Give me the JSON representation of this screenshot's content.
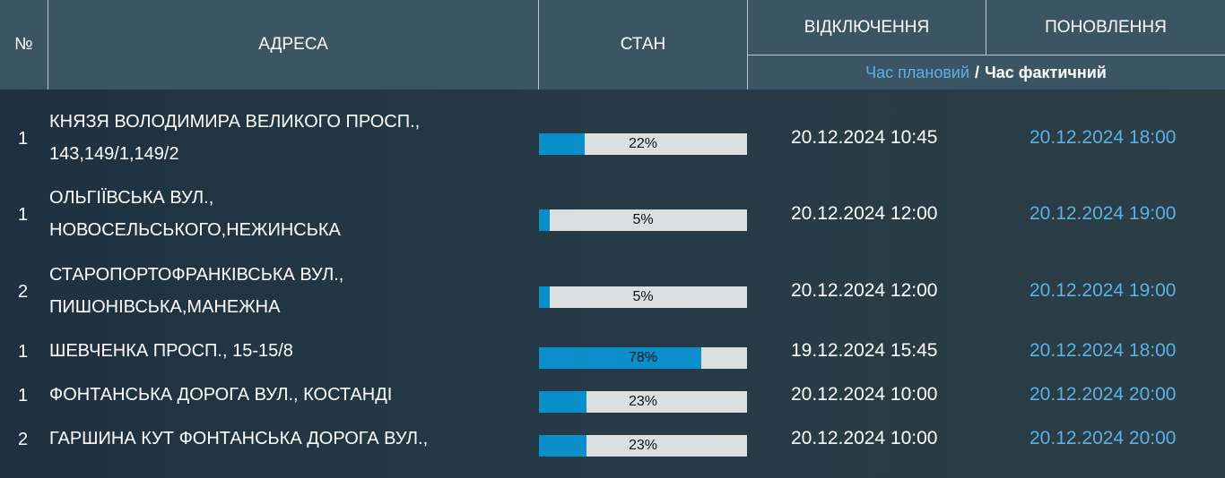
{
  "header": {
    "num": "№",
    "address": "АДРЕСА",
    "status": "СТАН",
    "outage": "ВІДКЛЮЧЕННЯ",
    "restore": "ПОНОВЛЕННЯ",
    "planned": "Час плановий",
    "separator": "/",
    "actual": "Час фактичний"
  },
  "colors": {
    "header_bg": "#3c5565",
    "accent_blue": "#5bb1e3",
    "bar_fill": "#0b8fcb",
    "bar_track": "#dcdfe0"
  },
  "rows": [
    {
      "num": "1",
      "address_line1": "КНЯЗЯ ВОЛОДИМИРА ВЕЛИКОГО ПРОСП.,",
      "address_line2": "143,149/1,149/2",
      "progress_label": "22%",
      "progress": 22,
      "outage": "20.12.2024 10:45",
      "restore": "20.12.2024 18:00"
    },
    {
      "num": "1",
      "address_line1": "ОЛЬГІЇВСЬКА ВУЛ.,",
      "address_line2": "НОВОСЕЛЬСЬКОГО,НЕЖИНСЬКА",
      "progress_label": "5%",
      "progress": 5,
      "outage": "20.12.2024 12:00",
      "restore": "20.12.2024 19:00"
    },
    {
      "num": "2",
      "address_line1": "СТАРОПОРТОФРАНКІВСЬКА ВУЛ.,",
      "address_line2": "ПИШОНІВСЬКА,МАНЕЖНА",
      "progress_label": "5%",
      "progress": 5,
      "outage": "20.12.2024 12:00",
      "restore": "20.12.2024 19:00"
    },
    {
      "num": "1",
      "address_line1": "ШЕВЧЕНКА ПРОСП., 15-15/8",
      "address_line2": "",
      "progress_label": "78%",
      "progress": 78,
      "outage": "19.12.2024 15:45",
      "restore": "20.12.2024 18:00"
    },
    {
      "num": "1",
      "address_line1": "ФОНТАНСЬКА ДОРОГА ВУЛ., КОСТАНДІ",
      "address_line2": "",
      "progress_label": "23%",
      "progress": 23,
      "outage": "20.12.2024 10:00",
      "restore": "20.12.2024 20:00"
    },
    {
      "num": "2",
      "address_line1": "ГАРШИНА КУТ ФОНТАНСЬКА ДОРОГА ВУЛ.,",
      "address_line2": "",
      "progress_label": "23%",
      "progress": 23,
      "outage": "20.12.2024 10:00",
      "restore": "20.12.2024 20:00"
    }
  ]
}
